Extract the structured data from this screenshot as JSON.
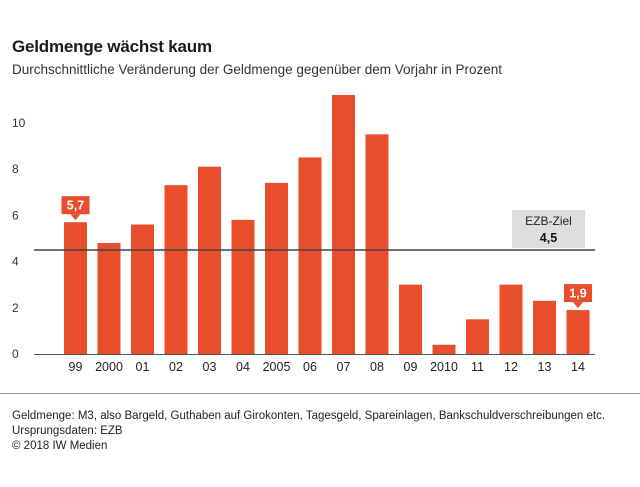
{
  "header": {
    "title": "Geldmenge wächst kaum",
    "subtitle": "Durchschnittliche Veränderung der Geldmenge gegenüber dem Vorjahr in Prozent"
  },
  "chart_data": {
    "type": "bar",
    "title": "Geldmenge wächst kaum",
    "subtitle": "Durchschnittliche Veränderung der Geldmenge gegenüber dem Vorjahr in Prozent",
    "categories": [
      "99",
      "2000",
      "01",
      "02",
      "03",
      "04",
      "2005",
      "06",
      "07",
      "08",
      "09",
      "2010",
      "11",
      "12",
      "13",
      "14"
    ],
    "values": [
      5.7,
      4.8,
      5.6,
      7.3,
      8.1,
      5.8,
      7.4,
      8.5,
      11.2,
      9.5,
      3.0,
      0.4,
      1.5,
      3.0,
      2.3,
      1.9
    ],
    "ylim": [
      0,
      11.2
    ],
    "yticks": [
      0,
      2,
      4,
      6,
      8,
      10
    ],
    "grid": false,
    "bar_color": "#e94e2c",
    "reference_line": {
      "label": "EZB-Ziel",
      "value_label": "4,5",
      "value": 4.5,
      "color": "#444444"
    },
    "data_labels": [
      {
        "index": 0,
        "text": "5,7"
      },
      {
        "index": 15,
        "text": "1,9"
      }
    ]
  },
  "footer": {
    "note": "Geldmenge: M3, also Bargeld, Guthaben auf Girokonten, Tagesgeld, Spareinlagen, Bankschuldverschreibungen etc.",
    "source": "Ursprungsdaten: EZB",
    "copyright": "© 2018 IW Medien"
  }
}
